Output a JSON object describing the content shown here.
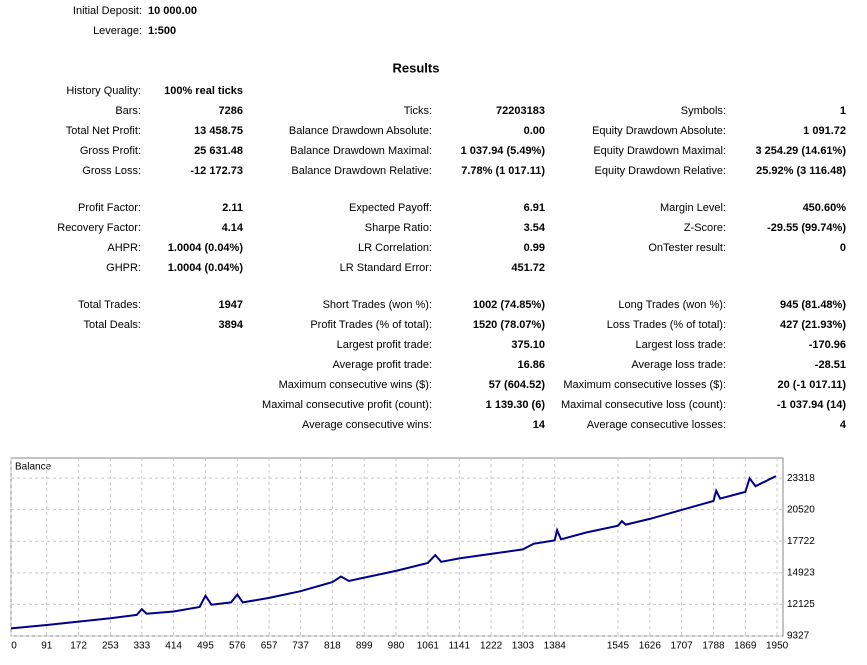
{
  "header": {
    "fields": [
      {
        "label": "Initial Deposit:",
        "value": "10 000.00"
      },
      {
        "label": "Leverage:",
        "value": "1:500"
      }
    ]
  },
  "results": {
    "title": "Results",
    "sections": [
      [
        [
          "History Quality:",
          "100% real ticks",
          null,
          null,
          null,
          null
        ],
        [
          "Bars:",
          "7286",
          "Ticks:",
          "72203183",
          "Symbols:",
          "1"
        ],
        [
          "Total Net Profit:",
          "13 458.75",
          "Balance Drawdown Absolute:",
          "0.00",
          "Equity Drawdown Absolute:",
          "1 091.72"
        ],
        [
          "Gross Profit:",
          "25 631.48",
          "Balance Drawdown Maximal:",
          "1 037.94 (5.49%)",
          "Equity Drawdown Maximal:",
          "3 254.29 (14.61%)"
        ],
        [
          "Gross Loss:",
          "-12 172.73",
          "Balance Drawdown Relative:",
          "7.78% (1 017.11)",
          "Equity Drawdown Relative:",
          "25.92% (3 116.48)"
        ]
      ],
      [
        [
          "Profit Factor:",
          "2.11",
          "Expected Payoff:",
          "6.91",
          "Margin Level:",
          "450.60%"
        ],
        [
          "Recovery Factor:",
          "4.14",
          "Sharpe Ratio:",
          "3.54",
          "Z-Score:",
          "-29.55 (99.74%)"
        ],
        [
          "AHPR:",
          "1.0004 (0.04%)",
          "LR Correlation:",
          "0.99",
          "OnTester result:",
          "0"
        ],
        [
          "GHPR:",
          "1.0004 (0.04%)",
          "LR Standard Error:",
          "451.72",
          null,
          null
        ]
      ],
      [
        [
          "Total Trades:",
          "1947",
          "Short Trades (won %):",
          "1002 (74.85%)",
          "Long Trades (won %):",
          "945 (81.48%)"
        ],
        [
          "Total Deals:",
          "3894",
          "Profit Trades (% of total):",
          "1520 (78.07%)",
          "Loss Trades (% of total):",
          "427 (21.93%)"
        ],
        [
          null,
          null,
          "Largest profit trade:",
          "375.10",
          "Largest loss trade:",
          "-170.96"
        ],
        [
          null,
          null,
          "Average profit trade:",
          "16.86",
          "Average loss trade:",
          "-28.51"
        ],
        [
          null,
          null,
          "Maximum consecutive wins ($):",
          "57 (604.52)",
          "Maximum consecutive losses ($):",
          "20 (-1 017.11)"
        ],
        [
          null,
          null,
          "Maximal consecutive profit (count):",
          "1 139.30 (6)",
          "Maximal consecutive loss (count):",
          "-1 037.94 (14)"
        ],
        [
          null,
          null,
          "Average consecutive wins:",
          "14",
          "Average consecutive losses:",
          "4"
        ]
      ]
    ]
  },
  "chart_data": {
    "type": "line",
    "title": "Balance",
    "x": [
      0,
      91,
      172,
      253,
      320,
      333,
      345,
      414,
      480,
      495,
      510,
      560,
      576,
      590,
      657,
      737,
      818,
      840,
      860,
      899,
      980,
      1061,
      1080,
      1095,
      1141,
      1222,
      1303,
      1330,
      1384,
      1390,
      1400,
      1464,
      1545,
      1555,
      1565,
      1626,
      1707,
      1788,
      1795,
      1805,
      1869,
      1880,
      1895,
      1947
    ],
    "values": [
      10000,
      10300,
      10600,
      10900,
      11200,
      11700,
      11300,
      11500,
      11900,
      12900,
      12100,
      12300,
      13000,
      12300,
      12700,
      13300,
      14100,
      14600,
      14200,
      14500,
      15100,
      15800,
      16500,
      15900,
      16200,
      16600,
      17000,
      17500,
      17800,
      18700,
      17900,
      18500,
      19100,
      19500,
      19200,
      19700,
      20500,
      21300,
      22200,
      21500,
      22100,
      23300,
      22600,
      23500
    ],
    "color": "#00008b",
    "xlim": [
      0,
      1965
    ],
    "ylim": [
      9327,
      25100
    ],
    "xticks": [
      0,
      91,
      172,
      253,
      333,
      414,
      495,
      576,
      657,
      737,
      818,
      899,
      980,
      1061,
      1141,
      1222,
      1303,
      1384,
      1545,
      1626,
      1707,
      1788,
      1869,
      1950
    ],
    "yticks": [
      9327,
      12125,
      14923,
      17722,
      20520,
      23318
    ],
    "grid": true
  }
}
